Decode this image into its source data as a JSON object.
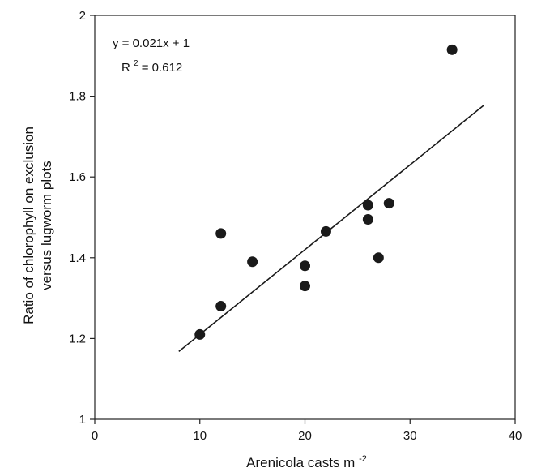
{
  "chart_data": {
    "type": "scatter",
    "xlabel_text": "Arenicola casts m",
    "xlabel_sup": "-2",
    "ylabel": [
      "Ratio of chlorophyll on exclusion",
      "versus lugworm plots"
    ],
    "xlim": [
      0,
      40
    ],
    "ylim": [
      1,
      2
    ],
    "xticks": [
      0,
      10,
      20,
      30,
      40
    ],
    "yticks": [
      1,
      1.2,
      1.4,
      1.6,
      1.8,
      2
    ],
    "xtick_labels": [
      "0",
      "10",
      "20",
      "30",
      "40"
    ],
    "ytick_labels": [
      "1",
      "1.2",
      "1.4",
      "1.6",
      "1.8",
      "2"
    ],
    "grid": false,
    "points": [
      {
        "x": 10,
        "y": 1.21
      },
      {
        "x": 12,
        "y": 1.28
      },
      {
        "x": 12,
        "y": 1.46
      },
      {
        "x": 15,
        "y": 1.39
      },
      {
        "x": 20,
        "y": 1.33
      },
      {
        "x": 20,
        "y": 1.38
      },
      {
        "x": 22,
        "y": 1.465
      },
      {
        "x": 26,
        "y": 1.495
      },
      {
        "x": 26,
        "y": 1.53
      },
      {
        "x": 27,
        "y": 1.4
      },
      {
        "x": 28,
        "y": 1.535
      },
      {
        "x": 34,
        "y": 1.915
      }
    ],
    "fit_line": {
      "x_start": 8,
      "x_end": 37,
      "slope": 0.021,
      "intercept": 1
    },
    "annotation": {
      "equation": "y = 0.021x + 1",
      "r2_prefix": "R",
      "r2_sup": "2",
      "r2_suffix": " = 0.612"
    },
    "colors": {
      "marker": "#1a1a1a",
      "line": "#1a1a1a",
      "axis": "#222222"
    }
  }
}
